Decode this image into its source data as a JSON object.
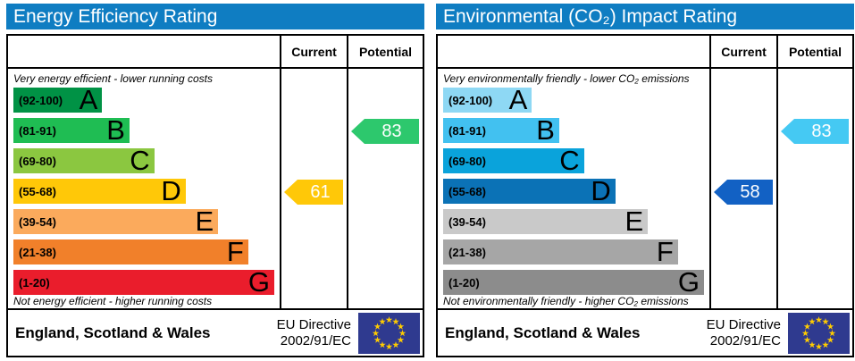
{
  "colors": {
    "title_bar": "#0f7dc2",
    "title_text": "#ffffff",
    "border": "#000000",
    "eu_flag_bg": "#2f3a8f",
    "eu_flag_stars": "#ffcc00"
  },
  "panels": [
    {
      "title": "Energy Efficiency Rating",
      "columns": {
        "current": "Current",
        "potential": "Potential"
      },
      "top_caption": "Very energy efficient - lower running costs",
      "bottom_caption": "Not energy efficient - higher running costs",
      "bands": [
        {
          "letter": "A",
          "range": "(92-100)",
          "color": "#009245",
          "width_pct": 34
        },
        {
          "letter": "B",
          "range": "(81-91)",
          "color": "#1fbd53",
          "width_pct": 44.5
        },
        {
          "letter": "C",
          "range": "(69-80)",
          "color": "#8bc740",
          "width_pct": 54
        },
        {
          "letter": "D",
          "range": "(55-68)",
          "color": "#ffc808",
          "width_pct": 66
        },
        {
          "letter": "E",
          "range": "(39-54)",
          "color": "#fbaa5c",
          "width_pct": 78.5
        },
        {
          "letter": "F",
          "range": "(21-38)",
          "color": "#f1802a",
          "width_pct": 90
        },
        {
          "letter": "G",
          "range": "(1-20)",
          "color": "#ea1d2c",
          "width_pct": 100
        }
      ],
      "current": {
        "value": 61,
        "band_index": 3,
        "color": "#ffc808"
      },
      "potential": {
        "value": 83,
        "band_index": 1,
        "color": "#2dc86d"
      },
      "footer": {
        "region": "England, Scotland & Wales",
        "directive_line1": "EU Directive",
        "directive_line2": "2002/91/EC"
      }
    },
    {
      "title": "Environmental (CO₂) Impact Rating",
      "columns": {
        "current": "Current",
        "potential": "Potential"
      },
      "top_caption": "Very environmentally friendly - lower CO₂ emissions",
      "bottom_caption": "Not environmentally friendly - higher CO₂ emissions",
      "bands": [
        {
          "letter": "A",
          "range": "(92-100)",
          "color": "#8ed8f4",
          "width_pct": 34
        },
        {
          "letter": "B",
          "range": "(81-91)",
          "color": "#42c1f0",
          "width_pct": 44.5
        },
        {
          "letter": "C",
          "range": "(69-80)",
          "color": "#0aa3db",
          "width_pct": 54
        },
        {
          "letter": "D",
          "range": "(55-68)",
          "color": "#0b72b6",
          "width_pct": 66
        },
        {
          "letter": "E",
          "range": "(39-54)",
          "color": "#c9c9c9",
          "width_pct": 78.5
        },
        {
          "letter": "F",
          "range": "(21-38)",
          "color": "#a6a6a6",
          "width_pct": 90
        },
        {
          "letter": "G",
          "range": "(1-20)",
          "color": "#8c8c8c",
          "width_pct": 100
        }
      ],
      "current": {
        "value": 58,
        "band_index": 3,
        "color": "#1261c4"
      },
      "potential": {
        "value": 83,
        "band_index": 1,
        "color": "#45c9f3"
      },
      "footer": {
        "region": "England, Scotland & Wales",
        "directive_line1": "EU Directive",
        "directive_line2": "2002/91/EC"
      }
    }
  ],
  "chart_data": [
    {
      "type": "bar",
      "orientation": "horizontal",
      "title": "Energy Efficiency Rating",
      "categories": [
        "A",
        "B",
        "C",
        "D",
        "E",
        "F",
        "G"
      ],
      "band_ranges": [
        "92-100",
        "81-91",
        "69-80",
        "55-68",
        "39-54",
        "21-38",
        "1-20"
      ],
      "band_colors": [
        "#009245",
        "#1fbd53",
        "#8bc740",
        "#ffc808",
        "#fbaa5c",
        "#f1802a",
        "#ea1d2c"
      ],
      "bar_lengths_pct": [
        34,
        44.5,
        54,
        66,
        78.5,
        90,
        100
      ],
      "current_rating": 61,
      "current_band": "D",
      "potential_rating": 83,
      "potential_band": "B",
      "top_note": "Very energy efficient - lower running costs",
      "bottom_note": "Not energy efficient - higher running costs",
      "footer": "England, Scotland & Wales",
      "directive": "EU Directive 2002/91/EC"
    },
    {
      "type": "bar",
      "orientation": "horizontal",
      "title": "Environmental (CO₂) Impact Rating",
      "categories": [
        "A",
        "B",
        "C",
        "D",
        "E",
        "F",
        "G"
      ],
      "band_ranges": [
        "92-100",
        "81-91",
        "69-80",
        "55-68",
        "39-54",
        "21-38",
        "1-20"
      ],
      "band_colors": [
        "#8ed8f4",
        "#42c1f0",
        "#0aa3db",
        "#0b72b6",
        "#c9c9c9",
        "#a6a6a6",
        "#8c8c8c"
      ],
      "bar_lengths_pct": [
        34,
        44.5,
        54,
        66,
        78.5,
        90,
        100
      ],
      "current_rating": 58,
      "current_band": "D",
      "potential_rating": 83,
      "potential_band": "B",
      "top_note": "Very environmentally friendly - lower CO₂ emissions",
      "bottom_note": "Not environmentally friendly - higher CO₂ emissions",
      "footer": "England, Scotland & Wales",
      "directive": "EU Directive 2002/91/EC"
    }
  ]
}
